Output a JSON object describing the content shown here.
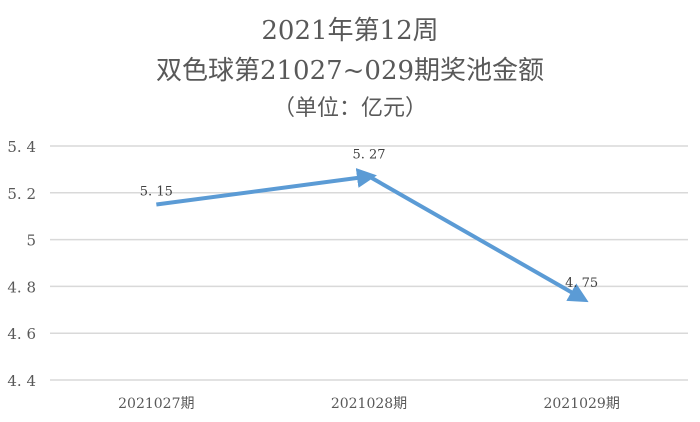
{
  "title": {
    "line1": "2021年第12周",
    "line2": "双色球第21027~029期奖池金额",
    "line3": "（单位：亿元）"
  },
  "chart_data": {
    "type": "line",
    "title": "2021年第12周 双色球第21027~029期奖池金额（单位：亿元）",
    "categories": [
      "2021027期",
      "2021028期",
      "2021029期"
    ],
    "series": [
      {
        "name": "奖池金额",
        "values": [
          5.15,
          5.27,
          4.75
        ],
        "color": "#5b9bd5"
      }
    ],
    "data_labels": [
      "5.15",
      "5.27",
      "4.75"
    ],
    "xlabel": "",
    "ylabel": "",
    "ylim": [
      4.4,
      5.4
    ],
    "yticks": [
      "5.4",
      "5.2",
      "5",
      "4.8",
      "4.6",
      "4.4"
    ],
    "grid": true,
    "legend": "none"
  }
}
